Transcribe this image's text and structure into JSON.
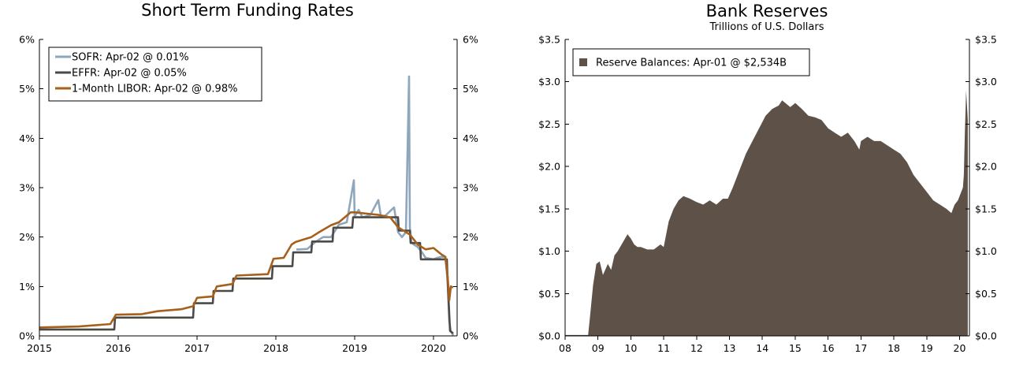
{
  "chart_data": [
    {
      "type": "line",
      "title": "Short Term Funding Rates",
      "y_ticks": [
        "0%",
        "1%",
        "2%",
        "3%",
        "4%",
        "5%",
        "6%"
      ],
      "y_tick_values": [
        0,
        1,
        2,
        3,
        4,
        5,
        6
      ],
      "ylim": [
        0,
        6
      ],
      "x_ticks": [
        "2015",
        "2016",
        "2017",
        "2018",
        "2019",
        "2020"
      ],
      "x_tick_values": [
        2015,
        2016,
        2017,
        2018,
        2019,
        2020
      ],
      "xlim": [
        2015,
        2020.3
      ],
      "legend_position": "top-left",
      "series": [
        {
          "name": "SOFR",
          "legend": "SOFR: Apr-02 @ 0.01%",
          "color": "#8ea7bd",
          "x": [
            2018.26,
            2018.3,
            2018.4,
            2018.5,
            2018.6,
            2018.7,
            2018.8,
            2018.9,
            2018.99,
            2019.0,
            2019.01,
            2019.05,
            2019.1,
            2019.2,
            2019.3,
            2019.33,
            2019.35,
            2019.4,
            2019.5,
            2019.55,
            2019.6,
            2019.65,
            2019.69,
            2019.7,
            2019.72,
            2019.75,
            2019.8,
            2019.85,
            2019.9,
            2020.0,
            2020.05,
            2020.1,
            2020.15,
            2020.18,
            2020.2,
            2020.22,
            2020.25
          ],
          "y": [
            1.75,
            1.75,
            1.76,
            1.9,
            2.0,
            2.0,
            2.25,
            2.3,
            3.15,
            2.4,
            2.45,
            2.55,
            2.4,
            2.45,
            2.75,
            2.45,
            2.4,
            2.45,
            2.6,
            2.1,
            2.0,
            2.1,
            5.25,
            2.2,
            1.9,
            1.85,
            1.8,
            1.7,
            1.58,
            1.55,
            1.58,
            1.6,
            1.6,
            1.1,
            0.3,
            0.1,
            0.01
          ]
        },
        {
          "name": "EFFR",
          "legend": "EFFR: Apr-02 @ 0.05%",
          "color": "#4d4a46",
          "x": [
            2015,
            2015.95,
            2015.96,
            2016.95,
            2016.96,
            2017.2,
            2017.21,
            2017.45,
            2017.46,
            2017.95,
            2017.96,
            2018.21,
            2018.22,
            2018.45,
            2018.46,
            2018.72,
            2018.73,
            2018.97,
            2018.98,
            2019.55,
            2019.56,
            2019.7,
            2019.71,
            2019.83,
            2019.84,
            2020.17,
            2020.18,
            2020.21,
            2020.25
          ],
          "y": [
            0.13,
            0.13,
            0.37,
            0.37,
            0.66,
            0.66,
            0.91,
            0.91,
            1.16,
            1.16,
            1.41,
            1.41,
            1.69,
            1.69,
            1.91,
            1.91,
            2.19,
            2.19,
            2.4,
            2.4,
            2.13,
            2.13,
            1.88,
            1.88,
            1.55,
            1.55,
            1.1,
            0.1,
            0.05
          ]
        },
        {
          "name": "1-Month LIBOR",
          "legend": "1-Month LIBOR: Apr-02 @ 0.98%",
          "color": "#a6601c",
          "x": [
            2015,
            2015.5,
            2015.9,
            2015.97,
            2016.0,
            2016.3,
            2016.5,
            2016.8,
            2016.95,
            2017.0,
            2017.2,
            2017.25,
            2017.45,
            2017.5,
            2017.9,
            2017.97,
            2018.1,
            2018.2,
            2018.25,
            2018.45,
            2018.55,
            2018.7,
            2018.8,
            2018.95,
            2019.0,
            2019.3,
            2019.45,
            2019.55,
            2019.7,
            2019.8,
            2019.9,
            2020.0,
            2020.1,
            2020.15,
            2020.18,
            2020.2,
            2020.22,
            2020.25
          ],
          "y": [
            0.17,
            0.19,
            0.24,
            0.43,
            0.43,
            0.44,
            0.5,
            0.54,
            0.6,
            0.77,
            0.8,
            1.0,
            1.05,
            1.22,
            1.25,
            1.56,
            1.58,
            1.85,
            1.9,
            2.0,
            2.1,
            2.24,
            2.3,
            2.5,
            2.5,
            2.45,
            2.4,
            2.2,
            2.05,
            1.85,
            1.75,
            1.78,
            1.65,
            1.6,
            1.2,
            0.72,
            1.0,
            0.98
          ]
        }
      ]
    },
    {
      "type": "area",
      "title": "Bank Reserves",
      "subtitle": "Trillions of U.S. Dollars",
      "y_ticks": [
        "$0.0",
        "$0.5",
        "$1.0",
        "$1.5",
        "$2.0",
        "$2.5",
        "$3.0",
        "$3.5"
      ],
      "y_tick_values": [
        0,
        0.5,
        1,
        1.5,
        2,
        2.5,
        3,
        3.5
      ],
      "ylim": [
        0,
        3.5
      ],
      "x_ticks": [
        "08",
        "09",
        "10",
        "11",
        "12",
        "13",
        "14",
        "15",
        "16",
        "17",
        "18",
        "19",
        "20"
      ],
      "x_tick_values": [
        2008,
        2009,
        2010,
        2011,
        2012,
        2013,
        2014,
        2015,
        2016,
        2017,
        2018,
        2019,
        2020
      ],
      "xlim": [
        2008,
        2020.3
      ],
      "legend_position": "top-left",
      "series": [
        {
          "name": "Reserve Balances",
          "legend": "Reserve Balances: Apr-01 @ $2,534B",
          "color": "#5e5147",
          "x": [
            2008,
            2008.7,
            2008.75,
            2008.85,
            2008.95,
            2009.05,
            2009.15,
            2009.3,
            2009.4,
            2009.5,
            2009.6,
            2009.75,
            2009.9,
            2010.0,
            2010.1,
            2010.2,
            2010.3,
            2010.5,
            2010.7,
            2010.9,
            2011.0,
            2011.15,
            2011.3,
            2011.45,
            2011.6,
            2011.8,
            2012.0,
            2012.2,
            2012.4,
            2012.6,
            2012.8,
            2012.95,
            2013.1,
            2013.3,
            2013.5,
            2013.7,
            2013.9,
            2014.1,
            2014.3,
            2014.5,
            2014.6,
            2014.7,
            2014.85,
            2015.0,
            2015.2,
            2015.4,
            2015.6,
            2015.8,
            2016.0,
            2016.2,
            2016.4,
            2016.6,
            2016.8,
            2016.95,
            2017.0,
            2017.2,
            2017.4,
            2017.6,
            2017.8,
            2018.0,
            2018.2,
            2018.4,
            2018.6,
            2018.8,
            2019.0,
            2019.2,
            2019.4,
            2019.6,
            2019.75,
            2019.85,
            2019.95,
            2020.05,
            2020.1,
            2020.13,
            2020.16,
            2020.2,
            2020.25
          ],
          "y": [
            0.01,
            0.01,
            0.2,
            0.6,
            0.85,
            0.88,
            0.72,
            0.85,
            0.78,
            0.95,
            1.0,
            1.1,
            1.2,
            1.15,
            1.08,
            1.05,
            1.05,
            1.02,
            1.02,
            1.08,
            1.05,
            1.35,
            1.5,
            1.6,
            1.65,
            1.62,
            1.58,
            1.55,
            1.6,
            1.55,
            1.62,
            1.62,
            1.75,
            1.95,
            2.15,
            2.3,
            2.45,
            2.6,
            2.68,
            2.72,
            2.78,
            2.75,
            2.7,
            2.75,
            2.68,
            2.6,
            2.58,
            2.55,
            2.45,
            2.4,
            2.35,
            2.4,
            2.3,
            2.2,
            2.3,
            2.35,
            2.3,
            2.3,
            2.25,
            2.2,
            2.15,
            2.05,
            1.9,
            1.8,
            1.7,
            1.6,
            1.55,
            1.5,
            1.45,
            1.55,
            1.6,
            1.7,
            1.75,
            1.9,
            2.4,
            2.9,
            2.55
          ]
        }
      ]
    }
  ]
}
